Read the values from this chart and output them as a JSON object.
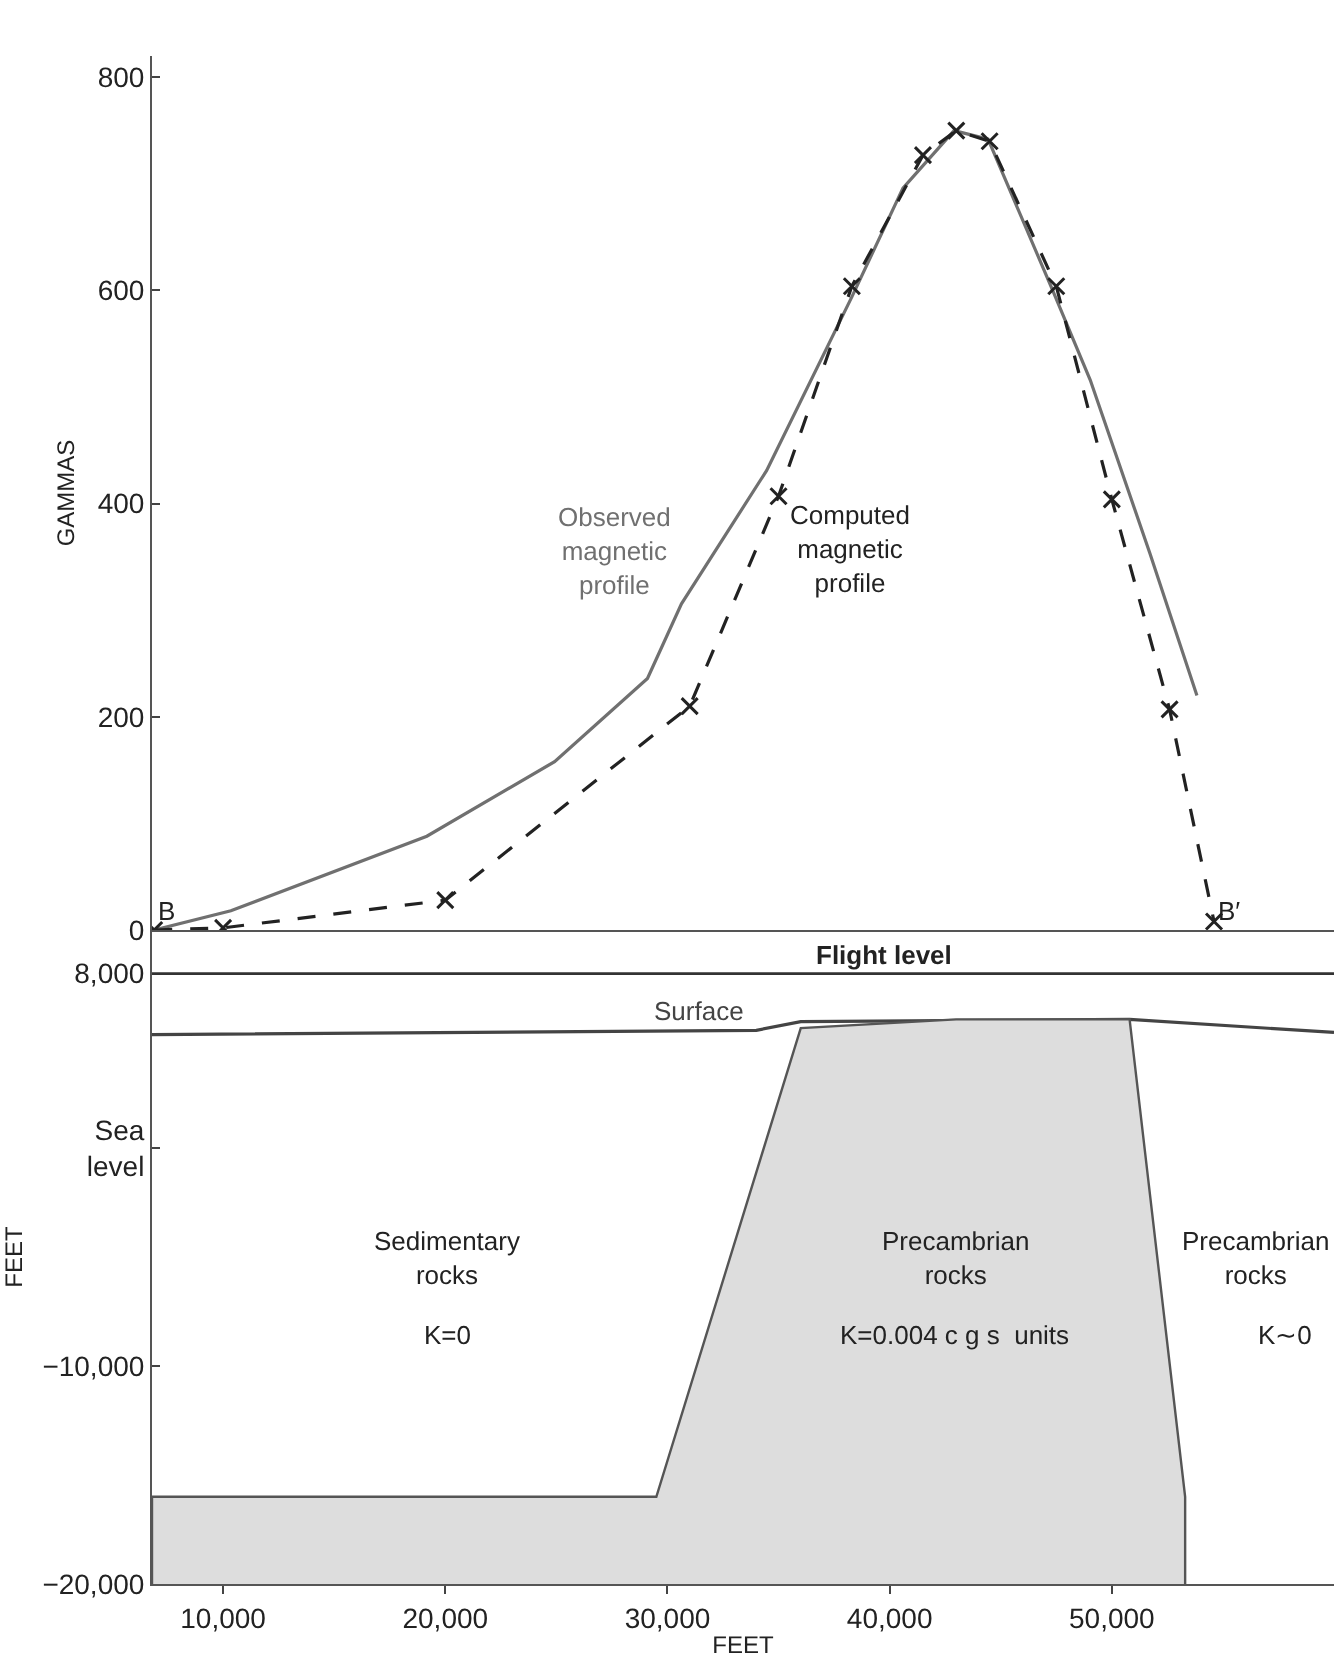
{
  "chart_data": [
    {
      "type": "line",
      "ylabel": "GAMMAS",
      "xlim": [
        6800,
        60000
      ],
      "ylim": [
        0,
        820
      ],
      "yticks": [
        0,
        200,
        400,
        600,
        800
      ],
      "tick_labels": "y",
      "grid": false,
      "legend": false,
      "series": [
        {
          "name": "Observed magnetic profile",
          "color": "#707070",
          "line_style": "solid",
          "marker": "none",
          "x": [
            6900,
            10350,
            19170,
            24920,
            29100,
            30630,
            34460,
            38300,
            40600,
            42900,
            44430,
            47300,
            49030,
            51720,
            53830
          ],
          "values": [
            0,
            18,
            88,
            158,
            236,
            306,
            431,
            594,
            696,
            750,
            742,
            602,
            516,
            353,
            220
          ]
        },
        {
          "name": "Computed magnetic profile",
          "color": "#222222",
          "line_style": "dashed",
          "marker": "cross",
          "x": [
            6900,
            10000,
            20000,
            31000,
            35000,
            38300,
            41500,
            43000,
            44500,
            47500,
            50000,
            52600,
            54600
          ],
          "values": [
            0,
            2,
            28,
            210,
            407,
            604,
            727,
            750,
            740,
            604,
            404,
            207,
            8
          ]
        }
      ],
      "annotations": [
        {
          "text": "B",
          "x": 6900,
          "y": 0
        },
        {
          "text": "B′",
          "x": 54600,
          "y": 0
        }
      ]
    },
    {
      "type": "area",
      "xlabel": "FEET",
      "ylabel": "FEET",
      "xlim": [
        6800,
        60000
      ],
      "ylim": [
        -20000,
        10000
      ],
      "xticks": [
        {
          "value": 10000,
          "label": "10,000"
        },
        {
          "value": 20000,
          "label": "20,000"
        },
        {
          "value": 30000,
          "label": "30,000"
        },
        {
          "value": 40000,
          "label": "40,000"
        },
        {
          "value": 50000,
          "label": "50,000"
        }
      ],
      "yticks": [
        {
          "value": 8000,
          "label": "8,000"
        },
        {
          "value": 0,
          "label": "Sea\nlevel"
        },
        {
          "value": -10000,
          "label": "−10,000"
        },
        {
          "value": -20000,
          "label": "−20,000"
        }
      ],
      "grid": false,
      "legend": false,
      "series": [
        {
          "name": "Surface",
          "type": "line",
          "color": "#444444",
          "line_style": "solid",
          "x": [
            6800,
            34000,
            36000,
            50800,
            60000
          ],
          "values": [
            5200,
            5400,
            5800,
            5900,
            5300
          ]
        },
        {
          "color": "#dddddd",
          "x": [
            6800,
            6800,
            29500,
            36000,
            43000,
            50800,
            53300,
            53300
          ],
          "values": [
            -20000,
            -16000,
            -16000,
            5500,
            5900,
            5900,
            -16000,
            -20000
          ]
        }
      ],
      "ref_lines": [
        {
          "axis": "y",
          "value": 8000,
          "label": "Flight level"
        }
      ],
      "annotations": [
        "Sedimentary\nrocks",
        "K=0",
        "Precambrian\nrocks",
        "K=0.004 c g s  units",
        "Precambrian\nrocks",
        "K∼0"
      ]
    }
  ]
}
